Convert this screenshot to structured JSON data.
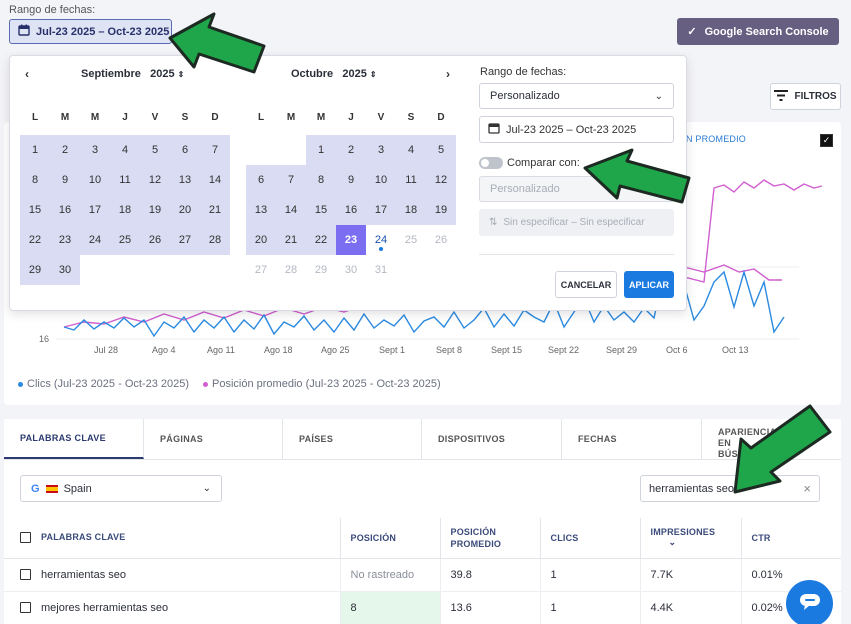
{
  "header": {
    "date_label": "Rango de fechas:",
    "date_range": "Jul-23 2025 – Oct-23 2025",
    "gsc_button": "Google Search Console",
    "filters_button": "FILTROS"
  },
  "chart": {
    "legend_top": "N PROMEDIO",
    "y_tick": "16",
    "x_ticks": [
      "Jul 28",
      "Ago 4",
      "Ago 11",
      "Ago 18",
      "Ago 25",
      "Sept 1",
      "Sept 8",
      "Sept 15",
      "Sept 22",
      "Sept 29",
      "Oct 6",
      "Oct 13"
    ],
    "legend": [
      {
        "label": "Clics (Jul-23 2025 - Oct-23 2025)",
        "color": "#2b8ae0"
      },
      {
        "label": "Posición promedio (Jul-23 2025 - Oct-23 2025)",
        "color": "#d15fd0"
      }
    ]
  },
  "datepicker": {
    "months": [
      {
        "name": "Septiembre",
        "year": "2025"
      },
      {
        "name": "Octubre",
        "year": "2025"
      }
    ],
    "weekdays": [
      "L",
      "M",
      "M",
      "J",
      "V",
      "S",
      "D"
    ],
    "sept_days": [
      "1",
      "2",
      "3",
      "4",
      "5",
      "6",
      "7",
      "8",
      "9",
      "10",
      "11",
      "12",
      "13",
      "14",
      "15",
      "16",
      "17",
      "18",
      "19",
      "20",
      "21",
      "22",
      "23",
      "24",
      "25",
      "26",
      "27",
      "28",
      "29",
      "30"
    ],
    "oct_days": [
      "1",
      "2",
      "3",
      "4",
      "5",
      "6",
      "7",
      "8",
      "9",
      "10",
      "11",
      "12",
      "13",
      "14",
      "15",
      "16",
      "17",
      "18",
      "19",
      "20",
      "21",
      "22",
      "23",
      "24",
      "25",
      "26",
      "27",
      "28",
      "29",
      "30",
      "31"
    ],
    "selected_day": "23",
    "today_day": "24",
    "side_label": "Rango de fechas:",
    "preset": "Personalizado",
    "range_value": "Jul-23 2025 – Oct-23 2025",
    "compare_label": "Comparar con:",
    "compare_preset": "Personalizado",
    "compare_range": "Sin especificar – Sin especificar",
    "cancel": "CANCELAR",
    "apply": "APLICAR"
  },
  "tabs": [
    "PALABRAS CLAVE",
    "PÁGINAS",
    "PAÍSES",
    "DISPOSITIVOS",
    "FECHAS",
    "APARIENCIA EN BÚSQUEDA"
  ],
  "filters": {
    "country": "Spain",
    "search_value": "herramientas seo"
  },
  "table": {
    "headers": [
      "PALABRAS CLAVE",
      "POSICIÓN",
      "POSICIÓN PROMEDIO",
      "CLICS",
      "IMPRESIONES",
      "CTR"
    ],
    "rows": [
      {
        "keyword": "herramientas seo",
        "position": "No rastreado",
        "avg_position": "39.8",
        "clicks": "1",
        "impressions": "7.7K",
        "ctr": "0.01%"
      },
      {
        "keyword": "mejores herramientas seo",
        "position": "8",
        "avg_position": "13.6",
        "clicks": "1",
        "impressions": "4.4K",
        "ctr": "0.02%"
      }
    ]
  },
  "colors": {
    "accent": "#1a7ae0",
    "range": "#d9dcf2",
    "selected": "#7c6ef0",
    "arrow": "#1fa64a"
  }
}
